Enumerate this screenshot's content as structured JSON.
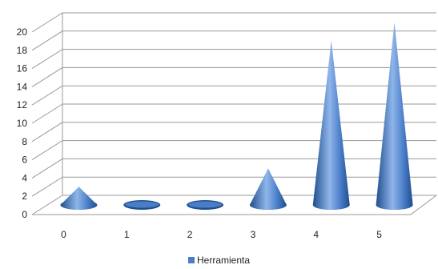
{
  "chart_data": {
    "type": "bar",
    "shape": "cone-3d",
    "categories": [
      "0",
      "1",
      "2",
      "3",
      "4",
      "5"
    ],
    "series": [
      {
        "name": "Herramienta",
        "values": [
          2,
          0,
          0,
          4,
          18,
          20
        ]
      }
    ],
    "ylim": [
      0,
      20
    ],
    "y_ticks": [
      "0",
      "2",
      "4",
      "6",
      "8",
      "10",
      "12",
      "14",
      "16",
      "18",
      "20"
    ],
    "grid": true,
    "legend_position": "bottom",
    "colors": {
      "series": "#4a7dc8",
      "series_dark": "#1f4e8c",
      "series_light": "#8fb6ea",
      "grid": "#9a9a9a"
    }
  }
}
